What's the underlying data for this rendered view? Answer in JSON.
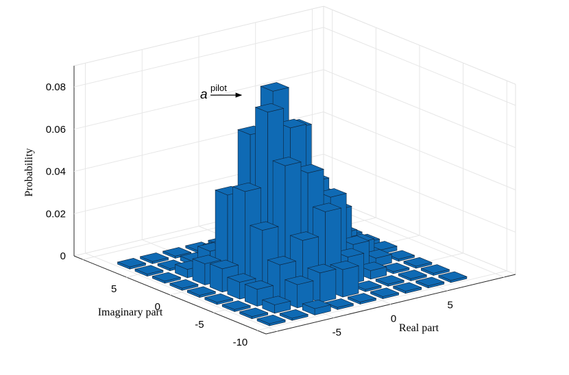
{
  "chart_data": {
    "type": "bar3d",
    "title": "",
    "xlabel": "Real part",
    "ylabel": "Imaginary part",
    "zlabel": "Probability",
    "xlim": [
      -11,
      11
    ],
    "ylim": [
      -11,
      11
    ],
    "zlim": [
      0,
      0.09
    ],
    "x_ticks": [
      "-5",
      "0",
      "5"
    ],
    "y_ticks": [
      "5",
      "0",
      "-5",
      "-10"
    ],
    "z_ticks": [
      "0",
      "0.02",
      "0.04",
      "0.06",
      "0.08"
    ],
    "grid": true,
    "bar_color": "#0f6ab4",
    "annotation": {
      "symbol": "a",
      "superscript": "pilot"
    },
    "bars": [
      {
        "x": -9,
        "y": 7,
        "z": 0.001
      },
      {
        "x": -7,
        "y": 7,
        "z": 0.001
      },
      {
        "x": -5,
        "y": 7,
        "z": 0.001
      },
      {
        "x": -3,
        "y": 7,
        "z": 0.001
      },
      {
        "x": -1,
        "y": 7,
        "z": 0.001
      },
      {
        "x": 1,
        "y": 7,
        "z": 0.001
      },
      {
        "x": 3,
        "y": 7,
        "z": 0.001
      },
      {
        "x": 5,
        "y": 7,
        "z": 0.001
      },
      {
        "x": 7,
        "y": 7,
        "z": 0.001
      },
      {
        "x": -9,
        "y": 5,
        "z": 0.001
      },
      {
        "x": -7,
        "y": 5,
        "z": 0.001
      },
      {
        "x": -5,
        "y": 5,
        "z": 0.002
      },
      {
        "x": -3,
        "y": 5,
        "z": 0.005
      },
      {
        "x": -1,
        "y": 5,
        "z": 0.007
      },
      {
        "x": 1,
        "y": 5,
        "z": 0.008
      },
      {
        "x": 3,
        "y": 5,
        "z": 0.005
      },
      {
        "x": 5,
        "y": 5,
        "z": 0.002
      },
      {
        "x": 7,
        "y": 5,
        "z": 0.001
      },
      {
        "x": -9,
        "y": 3,
        "z": 0.001
      },
      {
        "x": -7,
        "y": 3,
        "z": 0.004
      },
      {
        "x": -5,
        "y": 3,
        "z": 0.01
      },
      {
        "x": -3,
        "y": 3,
        "z": 0.022
      },
      {
        "x": -1,
        "y": 3,
        "z": 0.036
      },
      {
        "x": 1,
        "y": 3,
        "z": 0.04
      },
      {
        "x": 3,
        "y": 3,
        "z": 0.025
      },
      {
        "x": 5,
        "y": 3,
        "z": 0.009
      },
      {
        "x": 7,
        "y": 3,
        "z": 0.002
      },
      {
        "x": -9,
        "y": 1,
        "z": 0.001
      },
      {
        "x": -7,
        "y": 1,
        "z": 0.01
      },
      {
        "x": -5,
        "y": 1,
        "z": 0.04
      },
      {
        "x": -3,
        "y": 1,
        "z": 0.066
      },
      {
        "x": -1,
        "y": 1,
        "z": 0.084
      },
      {
        "x": 1,
        "y": 1,
        "z": 0.064
      },
      {
        "x": 3,
        "y": 1,
        "z": 0.03
      },
      {
        "x": 5,
        "y": 1,
        "z": 0.009
      },
      {
        "x": 7,
        "y": 1,
        "z": 0.002
      },
      {
        "x": -9,
        "y": -1,
        "z": 0.001
      },
      {
        "x": -7,
        "y": -1,
        "z": 0.011
      },
      {
        "x": -5,
        "y": -1,
        "z": 0.045
      },
      {
        "x": -3,
        "y": -1,
        "z": 0.08
      },
      {
        "x": -1,
        "y": -1,
        "z": 0.07
      },
      {
        "x": 1,
        "y": -1,
        "z": 0.042
      },
      {
        "x": 3,
        "y": -1,
        "z": 0.026
      },
      {
        "x": 5,
        "y": -1,
        "z": 0.008
      },
      {
        "x": 7,
        "y": -1,
        "z": 0.002
      },
      {
        "x": -9,
        "y": -3,
        "z": 0.001
      },
      {
        "x": -7,
        "y": -3,
        "z": 0.008
      },
      {
        "x": -5,
        "y": -3,
        "z": 0.03
      },
      {
        "x": -3,
        "y": -3,
        "z": 0.058
      },
      {
        "x": -1,
        "y": -3,
        "z": 0.052
      },
      {
        "x": 1,
        "y": -3,
        "z": 0.038
      },
      {
        "x": 3,
        "y": -3,
        "z": 0.013
      },
      {
        "x": 5,
        "y": -3,
        "z": 0.004
      },
      {
        "x": 7,
        "y": -3,
        "z": 0.001
      },
      {
        "x": -9,
        "y": -5,
        "z": 0.001
      },
      {
        "x": -7,
        "y": -5,
        "z": 0.008
      },
      {
        "x": -5,
        "y": -5,
        "z": 0.017
      },
      {
        "x": -3,
        "y": -5,
        "z": 0.026
      },
      {
        "x": -1,
        "y": -5,
        "z": 0.037
      },
      {
        "x": 1,
        "y": -5,
        "z": 0.013
      },
      {
        "x": 3,
        "y": -5,
        "z": 0.004
      },
      {
        "x": 5,
        "y": -5,
        "z": 0.001
      },
      {
        "x": 7,
        "y": -5,
        "z": 0.001
      },
      {
        "x": -9,
        "y": -7,
        "z": 0.001
      },
      {
        "x": -7,
        "y": -7,
        "z": 0.004
      },
      {
        "x": -5,
        "y": -7,
        "z": 0.011
      },
      {
        "x": -3,
        "y": -7,
        "z": 0.014
      },
      {
        "x": -1,
        "y": -7,
        "z": 0.013
      },
      {
        "x": 1,
        "y": -7,
        "z": 0.001
      },
      {
        "x": 3,
        "y": -7,
        "z": 0.001
      },
      {
        "x": 5,
        "y": -7,
        "z": 0.001
      },
      {
        "x": 7,
        "y": -7,
        "z": 0.001
      },
      {
        "x": -9,
        "y": -9,
        "z": 0.001
      },
      {
        "x": -7,
        "y": -9,
        "z": 0.001
      },
      {
        "x": -5,
        "y": -9,
        "z": 0.003
      },
      {
        "x": -3,
        "y": -9,
        "z": 0.001
      },
      {
        "x": -1,
        "y": -9,
        "z": 0.001
      },
      {
        "x": 1,
        "y": -9,
        "z": 0.001
      },
      {
        "x": 3,
        "y": -9,
        "z": 0.001
      },
      {
        "x": 5,
        "y": -9,
        "z": 0.001
      },
      {
        "x": 7,
        "y": -9,
        "z": 0.001
      }
    ]
  }
}
